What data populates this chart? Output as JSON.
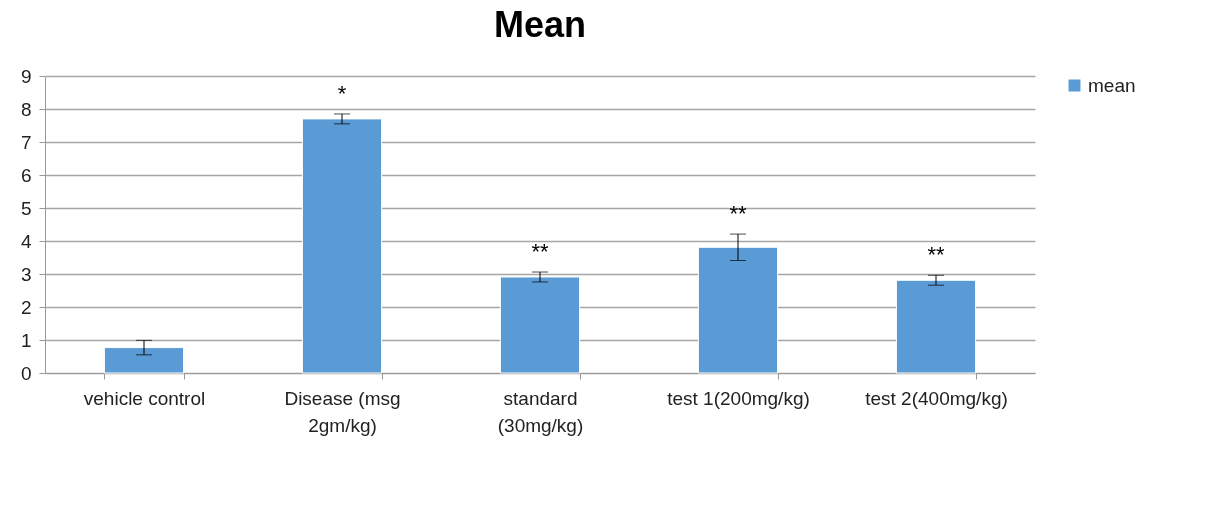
{
  "chart_data": {
    "type": "bar",
    "title": "Mean",
    "categories": [
      "vehicle control",
      "Disease (msg 2gm/kg)",
      "standard (30mg/kg)",
      "test 1(200mg/kg)",
      "test 2(400mg/kg)"
    ],
    "series": [
      {
        "name": "mean",
        "color": "#5b9bd5",
        "values": [
          0.77,
          7.7,
          2.91,
          3.81,
          2.81
        ],
        "errors": [
          0.22,
          0.15,
          0.15,
          0.4,
          0.15
        ],
        "value_labels": [
          null,
          "*",
          "**",
          "**",
          "**"
        ]
      }
    ],
    "ylim": [
      0,
      9
    ],
    "yticks": [
      0,
      1,
      2,
      3,
      4,
      5,
      6,
      7,
      8,
      9
    ],
    "grid": "y",
    "legend": "right"
  }
}
